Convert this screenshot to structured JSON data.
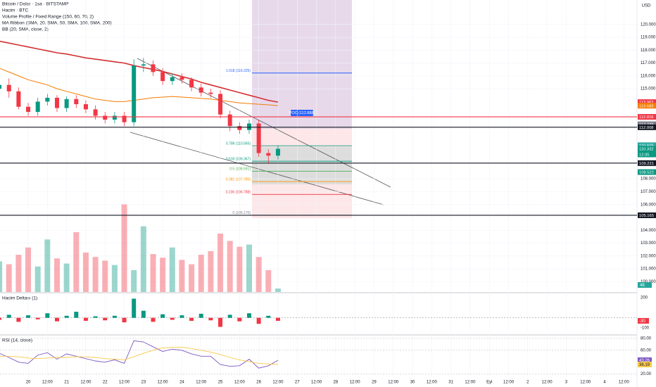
{
  "header": {
    "symbol": "Bitcoin / Dolar · 1sa · BITSTAMP",
    "indicators": [
      "Hacim · BTC",
      "Volume Profile / Fixed Range (150, 60, 70, 2)",
      "MA Ribbon (SMA, 20, SMA, 50, SMA, 100, SMA, 200)",
      "BB (20, SMA, close, 2)"
    ],
    "currency": "USD",
    "countdown": "12:35",
    "poc_label": "POC (112.888)"
  },
  "chart_data": [
    {
      "type": "candlestick",
      "title": "Bitcoin / Dolar · 1sa · BITSTAMP",
      "x": [
        -18,
        -12,
        -6,
        0,
        6,
        12,
        18,
        24,
        30,
        36,
        42,
        48,
        54,
        60,
        66,
        72,
        78,
        84,
        90,
        96,
        102,
        108,
        114,
        120,
        126,
        132,
        138,
        144,
        150,
        156
      ],
      "open": [
        115000,
        115300,
        114800,
        113600,
        113200,
        114000,
        114300,
        113500,
        114200,
        113800,
        113400,
        112900,
        112600,
        112900,
        112400,
        116800,
        116900,
        116300,
        115600,
        115900,
        115700,
        115100,
        114700,
        114600,
        113000,
        112100,
        111800,
        112300,
        110000,
        109800
      ],
      "high": [
        115600,
        115800,
        115100,
        113900,
        114300,
        114600,
        114500,
        114400,
        114500,
        114100,
        113700,
        113200,
        113200,
        113200,
        117300,
        117400,
        117200,
        116600,
        116200,
        116200,
        115900,
        115400,
        115000,
        114900,
        113300,
        112400,
        112600,
        112600,
        110300,
        110600
      ],
      "low": [
        114600,
        114300,
        113400,
        112900,
        112900,
        113700,
        113200,
        113200,
        113500,
        113100,
        112600,
        112300,
        112300,
        112100,
        112100,
        116300,
        116000,
        115300,
        115300,
        115400,
        114800,
        114400,
        114300,
        112700,
        111700,
        111500,
        111500,
        109700,
        109200,
        109500
      ],
      "close": [
        115300,
        114800,
        113600,
        113200,
        114000,
        114300,
        113500,
        114200,
        113800,
        113400,
        112900,
        112600,
        112900,
        112400,
        116800,
        116900,
        116300,
        115600,
        115900,
        115700,
        115100,
        114700,
        114600,
        113000,
        112100,
        111800,
        112300,
        110000,
        109800,
        110332
      ],
      "up_color": "#089981",
      "down_color": "#f23645",
      "series": [
        {
          "name": "SMA 200",
          "color": "#d32f2f",
          "values": [
            118700,
            118550,
            118400,
            118250,
            118100,
            117950,
            117800,
            117700,
            117550,
            117400,
            117300,
            117200,
            117100,
            117000,
            116800,
            116650,
            116500,
            116350,
            116150,
            115950,
            115750,
            115500,
            115300,
            115100,
            114900,
            114700,
            114500,
            114300,
            114100,
            113962
          ]
        },
        {
          "name": "SMA 100",
          "color": "#f57c00",
          "values": [
            116600,
            116300,
            116000,
            115700,
            115500,
            115300,
            115000,
            114800,
            114600,
            114400,
            114200,
            114100,
            114000,
            114000,
            114100,
            114200,
            114300,
            114350,
            114400,
            114350,
            114300,
            114250,
            114200,
            114100,
            114000,
            113900,
            113850,
            113800,
            113750,
            113683
          ]
        }
      ],
      "xlim": [
        -17.6,
        380.2
      ],
      "xticks": [
        {
          "value": 0,
          "label": "20"
        },
        {
          "value": 12,
          "label": "12:00"
        },
        {
          "value": 24,
          "label": "21"
        },
        {
          "value": 36,
          "label": "12:00"
        },
        {
          "value": 48,
          "label": "22"
        },
        {
          "value": 60,
          "label": "12:00"
        },
        {
          "value": 72,
          "label": "23"
        },
        {
          "value": 84,
          "label": "12:00"
        },
        {
          "value": 96,
          "label": "24"
        },
        {
          "value": 108,
          "label": "12:00"
        },
        {
          "value": 120,
          "label": "25"
        },
        {
          "value": 132,
          "label": "12:00"
        },
        {
          "value": 144,
          "label": "26"
        },
        {
          "value": 156,
          "label": "12:00"
        },
        {
          "value": 168,
          "label": "27"
        },
        {
          "value": 180,
          "label": "12:00"
        },
        {
          "value": 192,
          "label": "28"
        },
        {
          "value": 204,
          "label": "12:00"
        },
        {
          "value": 216,
          "label": "29"
        },
        {
          "value": 228,
          "label": "12:00"
        },
        {
          "value": 240,
          "label": "30"
        },
        {
          "value": 252,
          "label": "12:00"
        },
        {
          "value": 264,
          "label": "31"
        },
        {
          "value": 276,
          "label": "12:00"
        },
        {
          "value": 288,
          "label": "Eyl"
        },
        {
          "value": 300,
          "label": "12:00"
        },
        {
          "value": 312,
          "label": "2"
        },
        {
          "value": 324,
          "label": "12:00"
        },
        {
          "value": 336,
          "label": "3"
        },
        {
          "value": 348,
          "label": "12:00"
        },
        {
          "value": 360,
          "label": "4"
        },
        {
          "value": 372,
          "label": "12:00"
        }
      ],
      "ylim": [
        99200,
        121900
      ],
      "yticks": [
        {
          "value": 120000,
          "label": "120.000"
        },
        {
          "value": 119000,
          "label": "119.000"
        },
        {
          "value": 118000,
          "label": "118.000"
        },
        {
          "value": 117000,
          "label": "117.000"
        },
        {
          "value": 116000,
          "label": "116.000"
        },
        {
          "value": 115000,
          "label": "115.000"
        },
        {
          "value": 108000,
          "label": "108.000"
        },
        {
          "value": 107000,
          "label": "107.000"
        },
        {
          "value": 106000,
          "label": "106.000"
        },
        {
          "value": 104000,
          "label": "104.000"
        },
        {
          "value": 103000,
          "label": "103.000"
        },
        {
          "value": 102000,
          "label": "102.000"
        },
        {
          "value": 101000,
          "label": "101.000"
        },
        {
          "value": 100000,
          "label": "100.000"
        }
      ],
      "price_labels": [
        {
          "value": 113962,
          "label": "113.962",
          "color": "#f23645"
        },
        {
          "value": 113683,
          "label": "113.683",
          "color": "#f57c00"
        },
        {
          "value": 112816,
          "label": "112.816",
          "color": "#f23645",
          "line": true
        },
        {
          "value": 112238,
          "label": "112.238",
          "color": "#787b86"
        },
        {
          "value": 112008,
          "label": "112.008",
          "color": "#131722",
          "line": true
        },
        {
          "value": 110609,
          "label": "110.609",
          "color": "#26a69a"
        },
        {
          "value": 110332,
          "label": "110.332",
          "color": "#089981"
        },
        {
          "value": 109221,
          "label": "109.221",
          "color": "#131722",
          "line": true
        },
        {
          "value": 108522,
          "label": "108.522",
          "color": "#089981"
        },
        {
          "value": 105165,
          "label": "105.165",
          "color": "#131722",
          "line": true
        }
      ],
      "fib_levels": [
        {
          "label": "1.618 (116.225)",
          "value": 116225,
          "color": "#2962ff"
        },
        {
          "label": "0.786 (110.565)",
          "value": 110565,
          "color": "#089981"
        },
        {
          "label": "0.618 (109.367)",
          "value": 109367,
          "color": "#089981"
        },
        {
          "label": "0.5 (108.591)",
          "value": 108591,
          "color": "#4caf50"
        },
        {
          "label": "0.382 (107.785)",
          "value": 107785,
          "color": "#ff9800"
        },
        {
          "label": "0.236 (106.788)",
          "value": 106788,
          "color": "#f23645"
        },
        {
          "label": "0 (105.170)",
          "value": 105170,
          "color": "#787b86"
        }
      ]
    },
    {
      "type": "bar",
      "title": "Hacim · BTC",
      "values": [
        420,
        380,
        510,
        610,
        350,
        720,
        460,
        390,
        820,
        540,
        480,
        430,
        370,
        1200,
        300,
        900,
        520,
        470,
        610,
        440,
        380,
        510,
        560,
        800,
        700,
        620,
        650,
        480,
        300,
        48
      ],
      "ylim": [
        0,
        4000
      ],
      "value_color": "#26a69a"
    },
    {
      "type": "bar",
      "title": "Hacim Deltası (1)",
      "values": [
        -20,
        30,
        -40,
        25,
        -15,
        45,
        -35,
        20,
        60,
        -30,
        15,
        -25,
        20,
        -45,
        190,
        70,
        -40,
        35,
        -20,
        25,
        -30,
        40,
        -25,
        -90,
        30,
        -35,
        45,
        -60,
        20,
        -30
      ],
      "ylim": [
        -170,
        235
      ],
      "yticks": [
        200,
        -100
      ],
      "pos_color": "#089981",
      "neg_color": "#f23645"
    },
    {
      "type": "line",
      "title": "RSI (14, close)",
      "series": [
        {
          "name": "RSI",
          "color": "#7e57c2",
          "values": [
            55,
            48,
            40,
            38,
            52,
            56,
            45,
            54,
            50,
            46,
            42,
            40,
            44,
            38,
            76,
            74,
            66,
            58,
            62,
            60,
            54,
            50,
            50,
            36,
            33,
            34,
            45,
            30,
            34,
            43.26
          ]
        },
        {
          "name": "RSI-based MA",
          "color": "#f7c948",
          "values": [
            50,
            50,
            49,
            47,
            46,
            47,
            48,
            48,
            49,
            49,
            48,
            46,
            45,
            44,
            49,
            55,
            60,
            64,
            65,
            65,
            63,
            60,
            57,
            53,
            48,
            44,
            41,
            38,
            37,
            36.19
          ]
        }
      ],
      "ylim": [
        16,
        83.5
      ],
      "yticks": [
        {
          "value": 80,
          "label": "80.00"
        },
        {
          "value": 60,
          "label": "60.00"
        },
        {
          "value": 20,
          "label": "20.00"
        }
      ]
    }
  ]
}
